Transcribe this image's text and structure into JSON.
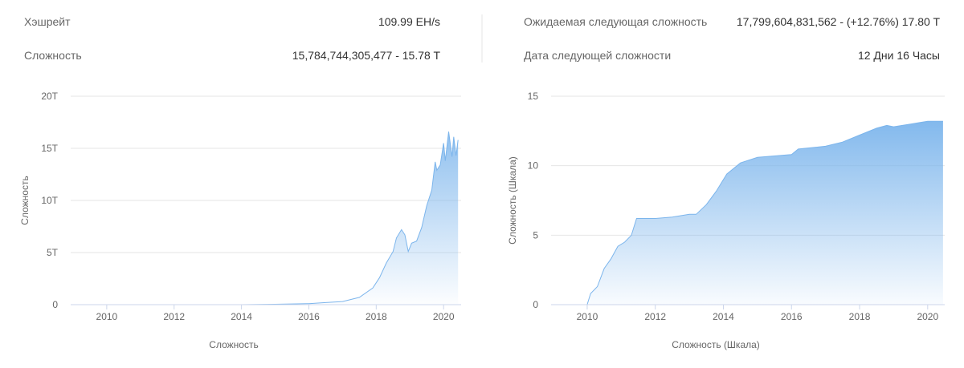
{
  "stats": {
    "left": [
      {
        "label": "Хэшрейт",
        "value": "109.99 EH/s"
      },
      {
        "label": "Сложность",
        "value": "15,784,744,305,477 - 15.78 T"
      }
    ],
    "right": [
      {
        "label": "Ожидаемая следующая сложность",
        "value": "17,799,604,831,562 - (+12.76%) 17.80 T"
      },
      {
        "label": "Дата следующей сложности",
        "value": "12 Дни 16 Часы"
      }
    ]
  },
  "chart_data": [
    {
      "type": "area",
      "ylabel": "Сложность",
      "xlabel": "Сложность",
      "color": "#7cb5ec",
      "x": [
        2009.0,
        2012.0,
        2013.0,
        2014.0,
        2015.0,
        2016.0,
        2016.5,
        2017.0,
        2017.5,
        2017.9,
        2018.1,
        2018.3,
        2018.5,
        2018.6,
        2018.75,
        2018.85,
        2018.95,
        2019.05,
        2019.2,
        2019.35,
        2019.5,
        2019.65,
        2019.75,
        2019.8,
        2019.9,
        2020.0,
        2020.05,
        2020.15,
        2020.25,
        2020.3,
        2020.37,
        2020.43
      ],
      "values": [
        0,
        2e-06,
        3e-06,
        0.0014,
        0.04,
        0.1,
        0.2,
        0.3,
        0.7,
        1.6,
        2.6,
        4,
        5.1,
        6.4,
        7.2,
        6.7,
        5.1,
        5.9,
        6.1,
        7.4,
        9.5,
        11,
        13.7,
        12.9,
        13.4,
        15.5,
        13.8,
        16.6,
        14.2,
        16.1,
        14.3,
        15.8
      ],
      "xlim": [
        2008.93,
        2020.52
      ],
      "xticks": [
        2010,
        2012,
        2014,
        2016,
        2018,
        2020
      ],
      "ylim": [
        0,
        20
      ],
      "yticks": [
        0,
        {
          "value": 5,
          "label": "5T"
        },
        {
          "value": 10,
          "label": "10T"
        },
        {
          "value": 15,
          "label": "15T"
        },
        {
          "value": 20,
          "label": "20T"
        }
      ],
      "grid": true
    },
    {
      "type": "area",
      "ylabel": "Сложность (Шкала)",
      "xlabel": "Сложность (Шкала)",
      "color": "#7cb5ec",
      "x": [
        2009.0,
        2010.0,
        2010.1,
        2010.3,
        2010.5,
        2010.7,
        2010.9,
        2011.1,
        2011.3,
        2011.45,
        2011.7,
        2012.0,
        2012.5,
        2013.0,
        2013.2,
        2013.5,
        2013.8,
        2014.1,
        2014.5,
        2015.0,
        2015.5,
        2016.0,
        2016.2,
        2017.0,
        2017.5,
        2018.0,
        2018.5,
        2018.8,
        2019.0,
        2019.5,
        2020.0,
        2020.45
      ],
      "values": [
        0,
        0,
        0.8,
        1.3,
        2.6,
        3.3,
        4.2,
        4.5,
        5.0,
        6.2,
        6.2,
        6.2,
        6.3,
        6.5,
        6.5,
        7.2,
        8.2,
        9.4,
        10.2,
        10.6,
        10.7,
        10.8,
        11.2,
        11.4,
        11.7,
        12.2,
        12.7,
        12.9,
        12.8,
        13.0,
        13.2,
        13.2
      ],
      "xlim": [
        2008.94,
        2020.5
      ],
      "xticks": [
        2010,
        2012,
        2014,
        2016,
        2018,
        2020
      ],
      "ylim": [
        0,
        15
      ],
      "yticks": [
        0,
        5,
        10,
        15
      ],
      "grid": true
    }
  ]
}
